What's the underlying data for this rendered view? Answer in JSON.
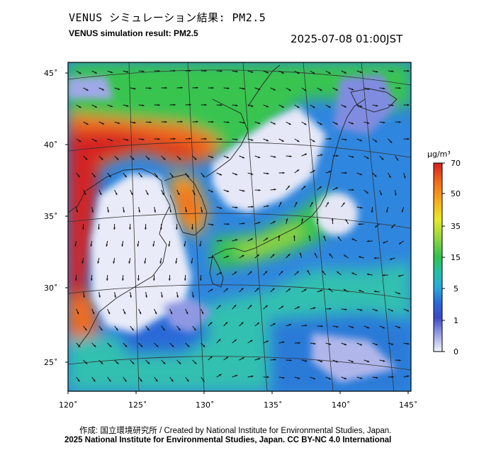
{
  "header": {
    "title_jp": "VENUS シミュレーション結果: PM2.5",
    "title_en": "VENUS simulation result: PM2.5",
    "timestamp": "2025-07-08 01:00JST"
  },
  "map": {
    "lat_labels": [
      "45˚",
      "40˚",
      "35˚",
      "30˚",
      "25˚"
    ],
    "lon_labels": [
      "120˚",
      "125˚",
      "130˚",
      "135˚",
      "140˚",
      "145˚"
    ]
  },
  "colorbar": {
    "unit": "µg/m³",
    "ticks": [
      "70",
      "50",
      "35",
      "15",
      "5",
      "1",
      "0"
    ],
    "colors": [
      "#d42020",
      "#f26a1c",
      "#f6b820",
      "#e8e82c",
      "#8fd640",
      "#30c250",
      "#25bfa8",
      "#2aa8dc",
      "#2a6ad8",
      "#3c48c8",
      "#8f98e2",
      "#f4f4fb"
    ]
  },
  "footer": {
    "credit": "作成: 国立環境研究所 / Created by National Institute for Environmental Studies, Japan.",
    "license": "2025 National Institute for Environmental Studies, Japan. CC BY-NC 4.0 International"
  }
}
